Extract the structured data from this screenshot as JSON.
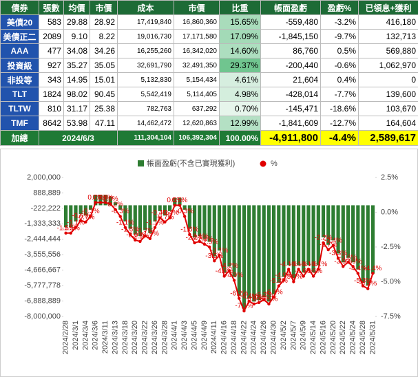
{
  "table": {
    "header": [
      "債券",
      "張數",
      "均價",
      "市價",
      "成本",
      "市價",
      "比重",
      "帳面盈虧",
      "盈虧%",
      "已領息+獲利"
    ],
    "rows": [
      [
        "美債20",
        "583",
        "29.88",
        "28.92",
        "17,419,840",
        "16,860,360",
        "15.65%",
        "-559,480",
        "-3.2%",
        "416,180"
      ],
      [
        "美債正二",
        "2089",
        "9.10",
        "8.22",
        "19,016,730",
        "17,171,580",
        "17.09%",
        "-1,845,150",
        "-9.7%",
        "132,713"
      ],
      [
        "AAA",
        "477",
        "34.08",
        "34.26",
        "16,255,260",
        "16,342,020",
        "14.60%",
        "86,760",
        "0.5%",
        "569,880"
      ],
      [
        "投資級",
        "927",
        "35.27",
        "35.05",
        "32,691,790",
        "32,491,350",
        "29.37%",
        "-200,440",
        "-0.6%",
        "1,062,970"
      ],
      [
        "非投等",
        "343",
        "14.95",
        "15.01",
        "5,132,830",
        "5,154,434",
        "4.61%",
        "21,604",
        "0.4%",
        "0"
      ],
      [
        "TLT",
        "1824",
        "98.02",
        "90.45",
        "5,542,419",
        "5,114,405",
        "4.98%",
        "-428,014",
        "-7.7%",
        "139,600"
      ],
      [
        "TLTW",
        "810",
        "31.17",
        "25.38",
        "782,763",
        "637,292",
        "0.70%",
        "-145,471",
        "-18.6%",
        "103,670"
      ],
      [
        "TMF",
        "8642",
        "53.98",
        "47.11",
        "14,462,472",
        "12,620,863",
        "12.99%",
        "-1,841,609",
        "-12.7%",
        "164,604"
      ]
    ],
    "total": [
      "加總",
      "2024/6/3",
      "111,304,104",
      "106,392,304",
      "100.00%",
      "-4,911,800",
      "-4.4%",
      "2,589,617"
    ]
  },
  "chart_data": {
    "type": "bar",
    "categories": [
      "2024/2/28",
      null,
      "2024/3/1",
      null,
      "2024/3/4",
      null,
      "2024/3/6",
      null,
      "2024/3/11",
      null,
      "2024/3/13",
      null,
      "2024/3/18",
      null,
      "2024/3/20",
      null,
      "2024/3/22",
      null,
      "2024/3/26",
      null,
      "2024/3/28",
      null,
      "2024/4/1",
      null,
      "2024/4/3",
      null,
      "2024/4/5",
      null,
      "2024/4/9",
      null,
      "2024/4/11",
      null,
      "2024/4/16",
      null,
      "2024/4/18",
      null,
      "2024/4/22",
      null,
      "2024/4/24",
      null,
      "2024/4/26",
      null,
      "2024/4/30",
      null,
      "2024/5/2",
      null,
      "2024/5/7",
      null,
      "2024/5/9",
      null,
      "2024/5/14",
      null,
      "2024/5/16",
      null,
      "2024/5/20",
      null,
      "2024/5/22",
      null,
      "2024/5/24",
      null,
      "2024/5/28",
      null,
      "2024/5/31"
    ],
    "series": [
      {
        "name": "帳面盈虧(不含已實現獲利)",
        "type": "bar",
        "color": "#2e7d32",
        "values": [
          -1580000,
          -1580000,
          -1160000,
          -630000,
          -740000,
          -320000,
          740000,
          740000,
          740000,
          630000,
          210000,
          -320000,
          -1160000,
          -1680000,
          -2100000,
          -2210000,
          -1790000,
          -2000000,
          -1160000,
          -420000,
          -740000,
          -420000,
          530000,
          530000,
          -320000,
          -1680000,
          -2310000,
          -2210000,
          -2420000,
          -2630000,
          -3680000,
          -3260000,
          -4830000,
          -4410000,
          -5150000,
          -6510000,
          -7460000,
          -6720000,
          -6930000,
          -6830000,
          -6620000,
          -6930000,
          -6410000,
          -5570000,
          -5150000,
          -4310000,
          -5250000,
          -4310000,
          -4830000,
          -4310000,
          -4830000,
          -4310000,
          -2310000,
          -2840000,
          -2520000,
          -3470000,
          -4100000,
          -3780000,
          -4100000,
          -4620000,
          -5570000,
          -5780000,
          -4911800
        ]
      },
      {
        "name": "%",
        "type": "line",
        "axis": "y2",
        "color": "#e00000",
        "values": [
          -1.5,
          -1.5,
          -1.1,
          -0.6,
          -0.7,
          -0.3,
          0.7,
          0.7,
          0.7,
          0.6,
          0.2,
          -0.3,
          -1.1,
          -1.6,
          -2.0,
          -2.1,
          -1.7,
          -1.9,
          -1.1,
          -0.4,
          -0.7,
          -0.4,
          0.5,
          0.5,
          -0.3,
          -1.6,
          -2.2,
          -2.1,
          -2.3,
          -2.5,
          -3.5,
          -3.1,
          -4.6,
          -4.2,
          -4.9,
          -6.2,
          -7.1,
          -6.4,
          -6.6,
          -6.5,
          -6.3,
          -6.6,
          -6.1,
          -5.3,
          -4.9,
          -4.1,
          -5.0,
          -4.1,
          -4.6,
          -4.1,
          -4.6,
          -4.1,
          -2.2,
          -2.7,
          -2.4,
          -3.3,
          -3.9,
          -3.6,
          -3.9,
          -4.4,
          -5.3,
          -5.5,
          -4.4
        ],
        "value_labels": [
          "-1.5%",
          "-1.5%",
          "-1.1%",
          "-0.6%",
          "-0.7%",
          "-0.3%",
          "0.7%",
          "0.7%",
          "0.7%",
          "0.6%",
          "0.2%",
          "-0.3%",
          "-1.1%",
          "-1.6%",
          "-2.0%",
          "-2.1%",
          "-1.7%",
          "-1.9%",
          "-1.1%",
          "-0.4%",
          "-0.7%",
          "-0.4%",
          "0.5%",
          "0.5%",
          "-0.3%",
          "-1.6%",
          "-2.2%",
          "-2.1%",
          "-2.3%",
          "-2.5%",
          "-3.5%",
          "-3.1%",
          "-4.6%",
          "-4.2%",
          "-4.9%",
          "-6.2%",
          "-7.1%",
          "-6.4%",
          "-6.6%",
          "-6.5%",
          "-6.3%",
          "-6.6%",
          "-6.1%",
          "-5.3%",
          "-4.9%",
          "-4.1%",
          "-5.0%",
          "-4.1%",
          "-4.6%",
          "-4.1%",
          "-4.6%",
          "-4.1%",
          "-2.2%",
          "-2.7%",
          "-2.4%",
          "-3.3%",
          "-3.9%",
          "-3.6%",
          "-3.9%",
          "-4.4%",
          "-5.3%",
          "-5.5%",
          "-4.4%"
        ]
      }
    ],
    "ylim": [
      -8000000,
      2000000
    ],
    "yticks": [
      {
        "value": 2000000,
        "label": "2,000,000"
      },
      {
        "value": 888889,
        "label": "888,889"
      },
      {
        "value": -222222,
        "label": "-222,222"
      },
      {
        "value": -1333333,
        "label": "-1,333,333"
      },
      {
        "value": -2444444,
        "label": "-2,444,444"
      },
      {
        "value": -3555556,
        "label": "-3,555,556"
      },
      {
        "value": -4666667,
        "label": "-4,666,667"
      },
      {
        "value": -5777778,
        "label": "-5,777,778"
      },
      {
        "value": -6888889,
        "label": "-6,888,889"
      },
      {
        "value": -8000000,
        "label": "-8,000,000"
      }
    ],
    "y2lim": [
      -7.5,
      2.5
    ],
    "y2ticks": [
      {
        "value": 2.5,
        "label": "2.5%"
      },
      {
        "value": 0,
        "label": "0.0%"
      },
      {
        "value": -2.5,
        "label": "-2.5%"
      },
      {
        "value": -5,
        "label": "-5.0%"
      },
      {
        "value": -7.5,
        "label": "-7.5%"
      }
    ],
    "grid": false,
    "legend": "top"
  }
}
